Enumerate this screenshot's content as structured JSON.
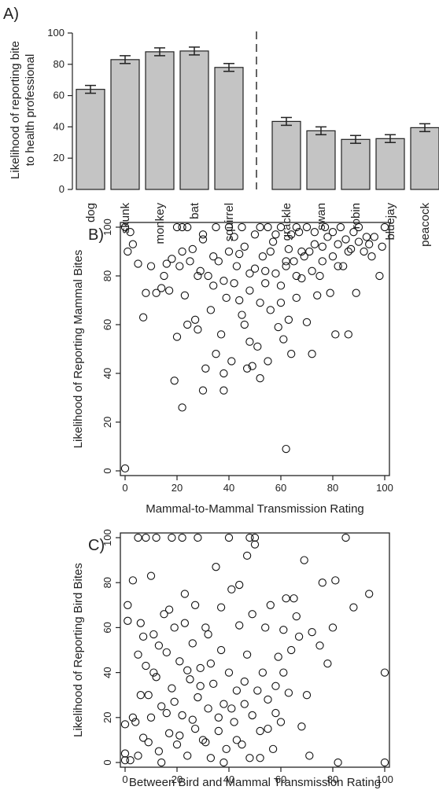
{
  "chart_data": [
    {
      "panel": "A)",
      "type": "bar",
      "ylabel_lines": [
        "Likelihood of reporting bite",
        "to health professional"
      ],
      "ylim": [
        0,
        100
      ],
      "yticks": [
        "0",
        "20",
        "40",
        "60",
        "80",
        "100"
      ],
      "groups": [
        {
          "categories": [
            "dog",
            "skunk",
            "monkey",
            "bat",
            "squirrel"
          ],
          "values": [
            64,
            83,
            88,
            88.5,
            78
          ],
          "errors": [
            2.5,
            2.5,
            2.5,
            2.5,
            2.5
          ]
        },
        {
          "categories": [
            "grackle",
            "swan",
            "robin",
            "bluejay",
            "peacock"
          ],
          "values": [
            43.5,
            37.5,
            32,
            32.5,
            39.5
          ],
          "errors": [
            2.5,
            2.5,
            2.5,
            2.5,
            2.5
          ]
        }
      ]
    },
    {
      "panel": "B)",
      "type": "scatter",
      "xlabel": "Mammal-to-Mammal Transmission Rating",
      "ylabel": "Likelihood of Reporting Mammal Bites",
      "xlim": [
        0,
        100
      ],
      "ylim": [
        0,
        100
      ],
      "xticks": [
        "0",
        "20",
        "40",
        "60",
        "80",
        "100"
      ],
      "yticks": [
        "0",
        "20",
        "40",
        "60",
        "80",
        "100"
      ],
      "points": [
        [
          0,
          1
        ],
        [
          0,
          100
        ],
        [
          2,
          98
        ],
        [
          1,
          90
        ],
        [
          3,
          93
        ],
        [
          5,
          85
        ],
        [
          7,
          63
        ],
        [
          8,
          73
        ],
        [
          10,
          84
        ],
        [
          12,
          73
        ],
        [
          14,
          75
        ],
        [
          15,
          80
        ],
        [
          16,
          85
        ],
        [
          17,
          74
        ],
        [
          18,
          87
        ],
        [
          19,
          37
        ],
        [
          20,
          55
        ],
        [
          21,
          84
        ],
        [
          22,
          26
        ],
        [
          22,
          90
        ],
        [
          23,
          72
        ],
        [
          24,
          60
        ],
        [
          25,
          86
        ],
        [
          27,
          62
        ],
        [
          28,
          58
        ],
        [
          29,
          82
        ],
        [
          30,
          95
        ],
        [
          30,
          33
        ],
        [
          31,
          42
        ],
        [
          32,
          80
        ],
        [
          33,
          66
        ],
        [
          34,
          76
        ],
        [
          35,
          48
        ],
        [
          36,
          86
        ],
        [
          37,
          56
        ],
        [
          38,
          40
        ],
        [
          38,
          33
        ],
        [
          39,
          71
        ],
        [
          40,
          90
        ],
        [
          41,
          45
        ],
        [
          42,
          77
        ],
        [
          43,
          84
        ],
        [
          44,
          70
        ],
        [
          45,
          64
        ],
        [
          46,
          60
        ],
        [
          46,
          92
        ],
        [
          47,
          42
        ],
        [
          48,
          53
        ],
        [
          48,
          74
        ],
        [
          49,
          43
        ],
        [
          50,
          83
        ],
        [
          51,
          51
        ],
        [
          52,
          38
        ],
        [
          52,
          69
        ],
        [
          53,
          88
        ],
        [
          54,
          77
        ],
        [
          55,
          45
        ],
        [
          56,
          66
        ],
        [
          57,
          94
        ],
        [
          58,
          81
        ],
        [
          59,
          59
        ],
        [
          60,
          69
        ],
        [
          61,
          54
        ],
        [
          62,
          9
        ],
        [
          62,
          84
        ],
        [
          63,
          62
        ],
        [
          63,
          91
        ],
        [
          64,
          48
        ],
        [
          65,
          86
        ],
        [
          66,
          71
        ],
        [
          67,
          98
        ],
        [
          68,
          79
        ],
        [
          69,
          88
        ],
        [
          70,
          61
        ],
        [
          71,
          90
        ],
        [
          72,
          48
        ],
        [
          73,
          93
        ],
        [
          74,
          72
        ],
        [
          75,
          80
        ],
        [
          76,
          86
        ],
        [
          78,
          96
        ],
        [
          79,
          73
        ],
        [
          80,
          88
        ],
        [
          81,
          56
        ],
        [
          82,
          93
        ],
        [
          84,
          84
        ],
        [
          85,
          95
        ],
        [
          86,
          56
        ],
        [
          87,
          91
        ],
        [
          89,
          73
        ],
        [
          90,
          94
        ],
        [
          92,
          90
        ],
        [
          93,
          96
        ],
        [
          95,
          88
        ],
        [
          96,
          96
        ],
        [
          98,
          80
        ],
        [
          100,
          100
        ],
        [
          99,
          92
        ],
        [
          20,
          100
        ],
        [
          22,
          100
        ],
        [
          24,
          100
        ],
        [
          35,
          100
        ],
        [
          40,
          100
        ],
        [
          45,
          100
        ],
        [
          52,
          100
        ],
        [
          55,
          100
        ],
        [
          60,
          100
        ],
        [
          66,
          100
        ],
        [
          70,
          100
        ],
        [
          77,
          100
        ],
        [
          83,
          100
        ],
        [
          90,
          100
        ],
        [
          30,
          97
        ],
        [
          42,
          96
        ],
        [
          50,
          97
        ],
        [
          58,
          97
        ],
        [
          64,
          97
        ],
        [
          73,
          98
        ],
        [
          80,
          98
        ],
        [
          88,
          98
        ],
        [
          26,
          91
        ],
        [
          34,
          88
        ],
        [
          44,
          89
        ],
        [
          56,
          90
        ],
        [
          62,
          86
        ],
        [
          68,
          90
        ],
        [
          76,
          92
        ],
        [
          86,
          90
        ],
        [
          94,
          93
        ],
        [
          28,
          80
        ],
        [
          38,
          78
        ],
        [
          48,
          81
        ],
        [
          54,
          82
        ],
        [
          60,
          76
        ],
        [
          66,
          80
        ],
        [
          72,
          82
        ],
        [
          82,
          84
        ]
      ]
    },
    {
      "panel": "C)",
      "type": "scatter",
      "xlabel": "Between Bird and Mammal Transmission Rating",
      "ylabel": "Likelihood of Reporting Bird Bites",
      "xlim": [
        0,
        100
      ],
      "ylim": [
        0,
        100
      ],
      "xticks": [
        "0",
        "20",
        "40",
        "60",
        "80",
        "100"
      ],
      "yticks": [
        "0",
        "20",
        "40",
        "60",
        "80",
        "100"
      ],
      "points": [
        [
          0,
          1
        ],
        [
          0,
          4
        ],
        [
          0,
          17
        ],
        [
          1,
          63
        ],
        [
          1,
          70
        ],
        [
          2,
          1
        ],
        [
          3,
          81
        ],
        [
          4,
          18
        ],
        [
          5,
          3
        ],
        [
          5,
          48
        ],
        [
          6,
          62
        ],
        [
          7,
          11
        ],
        [
          8,
          43
        ],
        [
          8,
          100
        ],
        [
          9,
          30
        ],
        [
          10,
          20
        ],
        [
          10,
          83
        ],
        [
          11,
          57
        ],
        [
          12,
          38
        ],
        [
          13,
          5
        ],
        [
          14,
          25
        ],
        [
          15,
          66
        ],
        [
          16,
          49
        ],
        [
          17,
          13
        ],
        [
          18,
          33
        ],
        [
          18,
          100
        ],
        [
          19,
          60
        ],
        [
          20,
          8
        ],
        [
          21,
          45
        ],
        [
          22,
          21
        ],
        [
          22,
          100
        ],
        [
          23,
          75
        ],
        [
          24,
          3
        ],
        [
          25,
          37
        ],
        [
          26,
          53
        ],
        [
          27,
          15
        ],
        [
          28,
          29
        ],
        [
          28,
          100
        ],
        [
          29,
          42
        ],
        [
          30,
          10
        ],
        [
          31,
          60
        ],
        [
          32,
          24
        ],
        [
          33,
          2
        ],
        [
          34,
          35
        ],
        [
          35,
          87
        ],
        [
          36,
          14
        ],
        [
          37,
          50
        ],
        [
          38,
          26
        ],
        [
          39,
          6
        ],
        [
          40,
          40
        ],
        [
          40,
          100
        ],
        [
          41,
          77
        ],
        [
          42,
          18
        ],
        [
          43,
          32
        ],
        [
          44,
          61
        ],
        [
          45,
          8
        ],
        [
          46,
          26
        ],
        [
          47,
          48
        ],
        [
          48,
          2
        ],
        [
          49,
          66
        ],
        [
          50,
          100
        ],
        [
          51,
          32
        ],
        [
          52,
          14
        ],
        [
          53,
          40
        ],
        [
          54,
          60
        ],
        [
          55,
          28
        ],
        [
          56,
          70
        ],
        [
          57,
          6
        ],
        [
          58,
          34
        ],
        [
          59,
          47
        ],
        [
          60,
          18
        ],
        [
          61,
          59
        ],
        [
          62,
          73
        ],
        [
          63,
          31
        ],
        [
          65,
          73
        ],
        [
          66,
          65
        ],
        [
          68,
          16
        ],
        [
          69,
          90
        ],
        [
          70,
          30
        ],
        [
          71,
          3
        ],
        [
          72,
          58
        ],
        [
          75,
          52
        ],
        [
          76,
          80
        ],
        [
          78,
          44
        ],
        [
          80,
          60
        ],
        [
          81,
          81
        ],
        [
          82,
          0
        ],
        [
          85,
          100
        ],
        [
          88,
          69
        ],
        [
          94,
          75
        ],
        [
          100,
          40
        ],
        [
          100,
          0
        ],
        [
          5,
          100
        ],
        [
          12,
          100
        ],
        [
          48,
          100
        ],
        [
          50,
          97
        ],
        [
          3,
          20
        ],
        [
          6,
          30
        ],
        [
          9,
          9
        ],
        [
          11,
          40
        ],
        [
          14,
          0
        ],
        [
          16,
          22
        ],
        [
          19,
          27
        ],
        [
          21,
          12
        ],
        [
          24,
          41
        ],
        [
          26,
          19
        ],
        [
          29,
          34
        ],
        [
          31,
          9
        ],
        [
          33,
          44
        ],
        [
          36,
          20
        ],
        [
          38,
          0
        ],
        [
          41,
          24
        ],
        [
          43,
          10
        ],
        [
          46,
          36
        ],
        [
          49,
          21
        ],
        [
          52,
          2
        ],
        [
          55,
          15
        ],
        [
          58,
          22
        ],
        [
          61,
          40
        ],
        [
          64,
          50
        ],
        [
          67,
          56
        ],
        [
          7,
          56
        ],
        [
          13,
          52
        ],
        [
          17,
          68
        ],
        [
          23,
          62
        ],
        [
          27,
          70
        ],
        [
          32,
          57
        ],
        [
          37,
          69
        ],
        [
          44,
          79
        ],
        [
          47,
          92
        ]
      ]
    }
  ]
}
